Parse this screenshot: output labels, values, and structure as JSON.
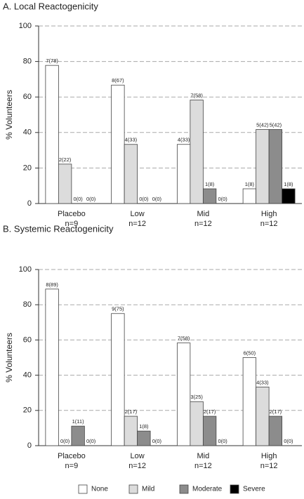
{
  "chart_data": [
    {
      "type": "bar",
      "title": "A. Local Reactogenicity",
      "y_label": "% Volunteers",
      "categories": [
        "Placebo",
        "Low",
        "Mid",
        "High"
      ],
      "category_notes": [
        "n=9",
        "n=12",
        "n=12",
        "n=12"
      ],
      "series": [
        {
          "color": "#ffffff",
          "values": [
            77.8,
            66.7,
            33.3,
            8.3
          ],
          "value_labels": [
            "7(78)",
            "8(67)",
            "4(33)",
            "1(8)"
          ]
        },
        {
          "color": "#dcdcdc",
          "values": [
            22.2,
            33.3,
            58.3,
            41.7
          ],
          "value_labels": [
            "2(22)",
            "4(33)",
            "7(58)",
            "5(42)"
          ]
        },
        {
          "color": "#8c8c8c",
          "values": [
            0,
            0,
            8.3,
            41.7
          ],
          "value_labels": [
            "0(0)",
            "0(0)",
            "1(8)",
            "5(42)"
          ]
        },
        {
          "color": "#000000",
          "values": [
            0,
            0,
            0,
            8.3
          ],
          "value_labels": [
            "0(0)",
            "0(0)",
            "0(0)",
            "1(8)"
          ]
        }
      ],
      "ylim": [
        0,
        100
      ],
      "yticks": [
        0,
        20,
        40,
        60,
        80,
        100
      ],
      "grid": true
    },
    {
      "type": "bar",
      "title": "B. Systemic Reactogenicity",
      "y_label": "% Volunteers",
      "categories": [
        "Placebo",
        "Low",
        "Mid",
        "High"
      ],
      "category_notes": [
        "n=9",
        "n=12",
        "n=12",
        "n=12"
      ],
      "series": [
        {
          "name": "None",
          "color": "#ffffff",
          "values": [
            88.9,
            75,
            58.3,
            50
          ],
          "value_labels": [
            "8(89)",
            "9(75)",
            "7(58)",
            "6(50)"
          ]
        },
        {
          "name": "Mild",
          "color": "#dcdcdc",
          "values": [
            0,
            16.7,
            25,
            33.3
          ],
          "value_labels": [
            "0(0)",
            "2(17)",
            "3(25)",
            "4(33)"
          ]
        },
        {
          "name": "Moderate",
          "color": "#8c8c8c",
          "values": [
            11.1,
            8.3,
            16.7,
            16.7
          ],
          "value_labels": [
            "1(11)",
            "1(8)",
            "2(17)",
            "2(17)"
          ]
        },
        {
          "name": "Severe",
          "color": "#000000",
          "values": [
            0,
            0,
            0,
            0
          ],
          "value_labels": [
            "0(0)",
            "0(0)",
            "0(0)",
            "0(0)"
          ]
        }
      ],
      "ylim": [
        0,
        100
      ],
      "yticks": [
        0,
        20,
        40,
        60,
        80,
        100
      ],
      "grid": true
    }
  ]
}
